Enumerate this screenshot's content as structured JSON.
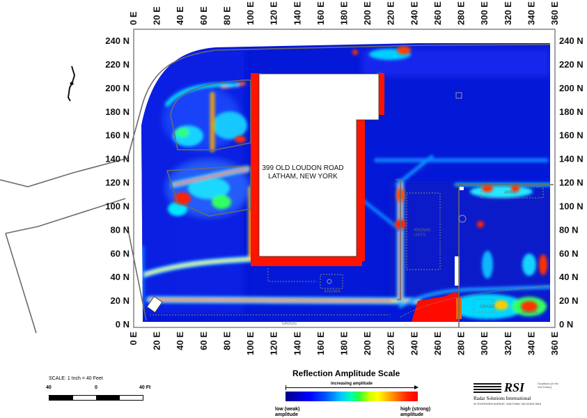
{
  "map": {
    "address_line1": "399 OLD LOUDON ROAD",
    "address_line2": "LATHAM, NEW YORK",
    "x_axis_labels": [
      "0 E",
      "20 E",
      "40 E",
      "60 E",
      "80 E",
      "100 E",
      "120 E",
      "140 E",
      "160 E",
      "180 E",
      "200 E",
      "220 E",
      "240 E",
      "260 E",
      "280 E",
      "300 E",
      "320 E",
      "340 E",
      "360 E"
    ],
    "y_axis_labels": [
      "240 N",
      "220 N",
      "200 N",
      "180 N",
      "160 N",
      "140 N",
      "120 N",
      "100 N",
      "80 N",
      "60 N",
      "40 N",
      "20 N",
      "0 N"
    ],
    "x_range_ft": [
      0,
      360
    ],
    "y_range_ft": [
      0,
      240
    ],
    "feature_labels": {
      "grass_1": "GRASS",
      "grass_2": "GRASS",
      "grass_3": "GRASS",
      "known_1": "KNOWN",
      "known_utilities": "KNOWN\nUSTS",
      "area_east": "AREA"
    }
  },
  "scale": {
    "title": "SCALE: 1 Inch = 40 Feet",
    "left_label": "40",
    "mid_label": "0",
    "right_label": "40 Ft"
  },
  "amplitude_scale": {
    "title": "Reflection Amplitude Scale",
    "arrow_label": "increasing amplitude",
    "low_label_1": "low (weak)",
    "low_label_2": "amplitude",
    "high_label_1": "high (strong)",
    "high_label_2": "amplitude",
    "colors": [
      "#000088",
      "#0000ff",
      "#00c8ff",
      "#30ff30",
      "#ffff00",
      "#ff9a00",
      "#ff0000"
    ]
  },
  "logo": {
    "mark": "RSI",
    "name": "Radar Solutions International",
    "tagline": "Geophysics for the 21st Century",
    "address": "51 RIVERVIEW AVENUE, WALTHAM, MA 02453-3819"
  }
}
